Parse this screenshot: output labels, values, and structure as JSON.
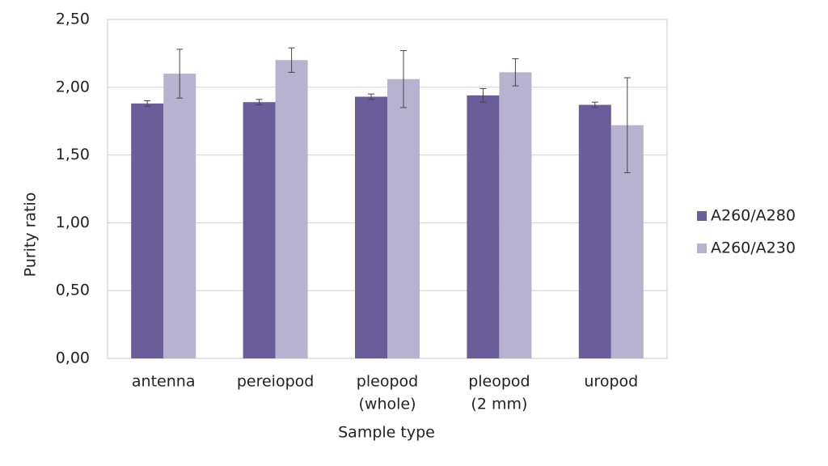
{
  "chart_data": {
    "type": "bar",
    "x_label": "Sample type",
    "y_label": "Purity ratio",
    "categories": [
      [
        "antenna"
      ],
      [
        "pereiopod"
      ],
      [
        "pleopod",
        "(whole)"
      ],
      [
        "pleopod",
        "(2 mm)"
      ],
      [
        "uropod"
      ]
    ],
    "series": [
      {
        "name": "A260/A280",
        "color": "#6a5d9a",
        "values": [
          1.88,
          1.89,
          1.93,
          1.94,
          1.87
        ],
        "errors": [
          0.02,
          0.02,
          0.02,
          0.05,
          0.02
        ]
      },
      {
        "name": "A260/A230",
        "color": "#b7b2cf",
        "values": [
          2.1,
          2.2,
          2.06,
          2.11,
          1.72
        ],
        "errors": [
          0.18,
          0.09,
          0.21,
          0.1,
          0.35
        ]
      }
    ],
    "ylim": [
      0,
      2.5
    ],
    "yticks": [
      {
        "value": 0,
        "label": "0,00"
      },
      {
        "value": 0.5,
        "label": "0,50"
      },
      {
        "value": 1,
        "label": "1,00"
      },
      {
        "value": 1.5,
        "label": "1,50"
      },
      {
        "value": 2,
        "label": "2,00"
      },
      {
        "value": 2.5,
        "label": "2,50"
      }
    ],
    "grid": true,
    "legend": "right"
  }
}
